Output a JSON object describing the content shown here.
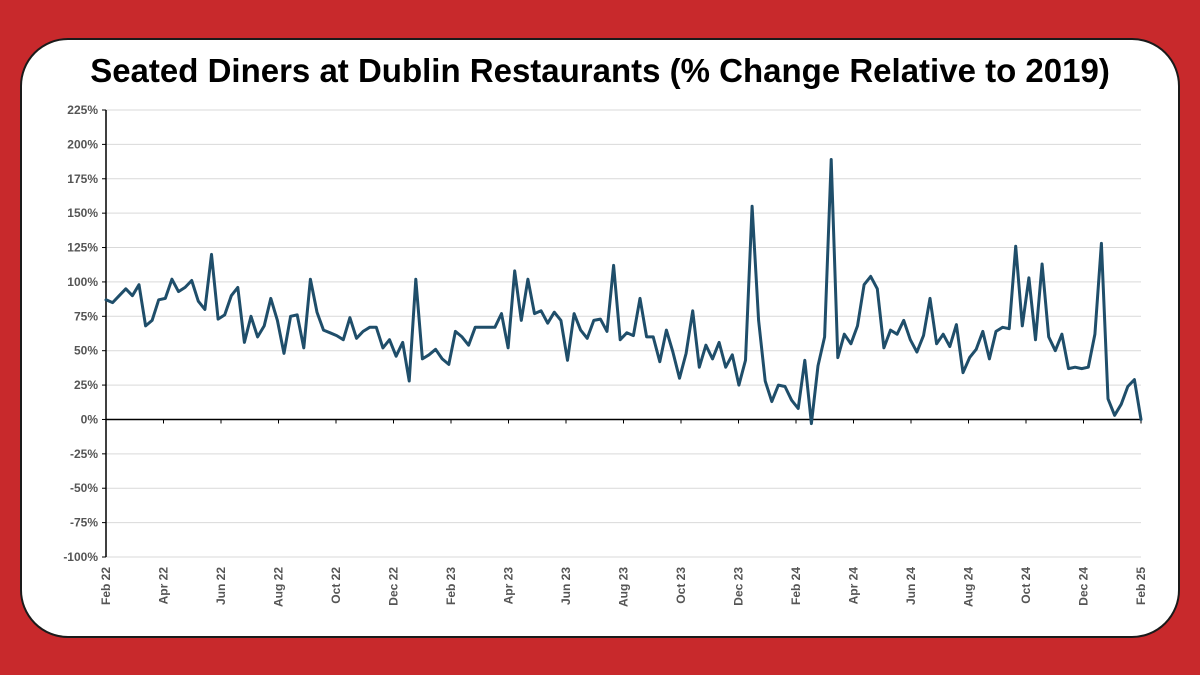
{
  "colors": {
    "frame": "#c8292c",
    "line": "#1f4e6a",
    "grid": "#d9d9d9",
    "axis": "#000000"
  },
  "chart_data": {
    "type": "line",
    "title": "Seated Diners at Dublin Restaurants (% Change Relative to 2019)",
    "xlabel": "",
    "ylabel": "",
    "ylim": [
      -100,
      225
    ],
    "y_ticks": [
      "225%",
      "200%",
      "175%",
      "150%",
      "125%",
      "100%",
      "75%",
      "50%",
      "25%",
      "0%",
      "-25%",
      "-50%",
      "-75%",
      "-100%"
    ],
    "x_ticks": [
      "Feb 22",
      "Apr 22",
      "Jun 22",
      "Aug 22",
      "Oct 22",
      "Dec 22",
      "Feb 23",
      "Apr 23",
      "Jun 23",
      "Aug 23",
      "Oct 23",
      "Dec 23",
      "Feb 24",
      "Apr 24",
      "Jun 24",
      "Aug 24",
      "Oct 24",
      "Dec 24",
      "Feb 25"
    ],
    "grid": true,
    "series": [
      {
        "values": [
          87,
          85,
          90,
          95,
          90,
          98,
          68,
          72,
          87,
          88,
          102,
          93,
          96,
          101,
          86,
          80,
          120,
          73,
          76,
          90,
          96,
          56,
          75,
          60,
          68,
          88,
          72,
          48,
          75,
          76,
          52,
          102,
          78,
          65,
          63,
          61,
          58,
          74,
          59,
          64,
          67,
          67,
          52,
          58,
          46,
          56,
          28,
          102,
          44,
          47,
          51,
          44,
          40,
          64,
          60,
          54,
          67,
          67,
          67,
          67,
          77,
          52,
          108,
          72,
          102,
          77,
          79,
          70,
          78,
          72,
          43,
          77,
          65,
          59,
          72,
          73,
          64,
          112,
          58,
          63,
          61,
          88,
          60,
          60,
          42,
          65,
          49,
          30,
          48,
          79,
          38,
          54,
          44,
          56,
          38,
          47,
          25,
          43,
          155,
          72,
          28,
          13,
          25,
          24,
          14,
          8,
          43,
          -3,
          39,
          60,
          189,
          45,
          62,
          55,
          68,
          98,
          104,
          95,
          52,
          65,
          62,
          72,
          58,
          49,
          61,
          88,
          55,
          62,
          53,
          69,
          34,
          45,
          51,
          64,
          44,
          64,
          67,
          66,
          126,
          68,
          103,
          58,
          113,
          60,
          50,
          62,
          37,
          38,
          37,
          38,
          62,
          128,
          15,
          3,
          11,
          24,
          29,
          0
        ]
      }
    ]
  }
}
